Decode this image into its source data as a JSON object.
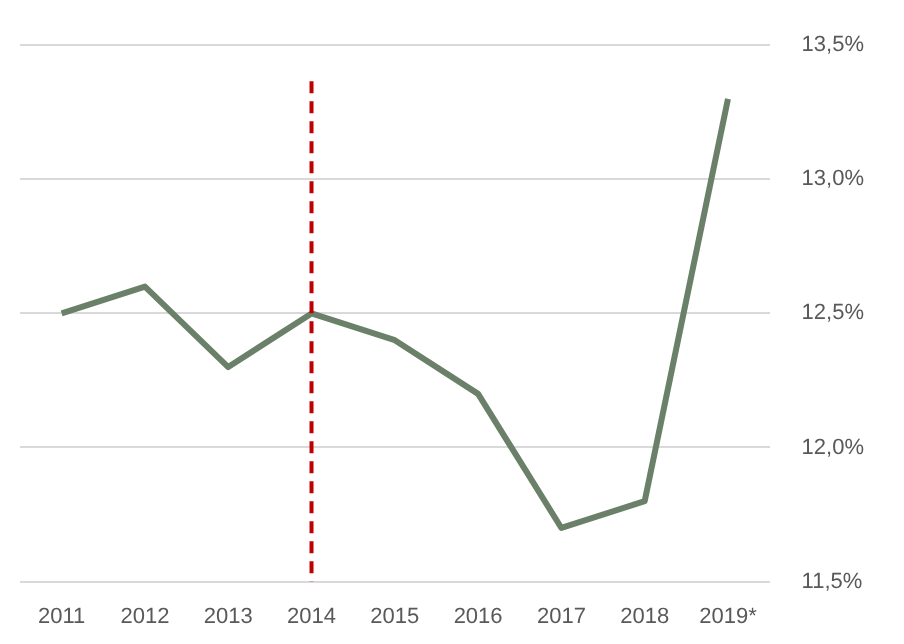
{
  "chart_data": {
    "type": "line",
    "categories": [
      "2011",
      "2012",
      "2013",
      "2014",
      "2015",
      "2016",
      "2017",
      "2018",
      "2019*"
    ],
    "series": [
      {
        "color": "#6b8068",
        "values": [
          12.5,
          12.6,
          12.3,
          12.5,
          12.4,
          12.2,
          11.7,
          11.8,
          13.3
        ]
      }
    ],
    "ylim": [
      11.5,
      13.5
    ],
    "yticks": [
      {
        "value": 11.5,
        "label": "11,5%"
      },
      {
        "value": 12,
        "label": "12,0%"
      },
      {
        "value": 12.5,
        "label": "12,5%"
      },
      {
        "value": 13,
        "label": "13,0%"
      },
      {
        "value": 13.5,
        "label": "13,5%"
      }
    ],
    "grid": "y",
    "legend": false,
    "marker": "none",
    "line_style": "solid",
    "ref_lines": [
      {
        "axis": "x",
        "value": "2014",
        "color": "#c00000",
        "line_style": "dashed"
      }
    ]
  }
}
